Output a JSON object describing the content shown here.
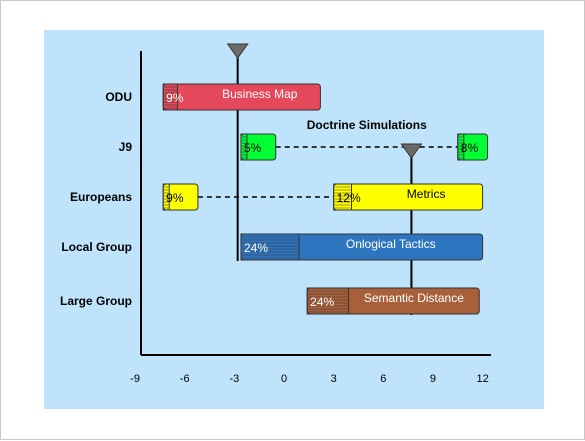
{
  "chart_data": {
    "type": "gantt",
    "background": "#bfe3fb",
    "xlim": [
      -9,
      12
    ],
    "x_ticks": [
      "-9",
      "-6",
      "-3",
      "0",
      "3",
      "6",
      "9",
      "12"
    ],
    "x_tick_values": [
      -9,
      -6,
      -3,
      0,
      3,
      6,
      9,
      12
    ],
    "categories": [
      "ODU",
      "J9",
      "Europeans",
      "Local Group",
      "Large Group"
    ],
    "tasks": [
      {
        "row": "ODU",
        "name": "Business Map",
        "start": -7.3,
        "end": 2.2,
        "percent": "9%",
        "progress": 0.09,
        "color": "#e5485a",
        "text_color": "#ffffff"
      },
      {
        "row": "J9",
        "name": "",
        "start": -2.6,
        "end": -0.5,
        "percent": "5%",
        "progress": 0.05,
        "color": "#00ff33",
        "text_color": "#000000"
      },
      {
        "row": "J9",
        "name": "",
        "start": 10.5,
        "end": 12.3,
        "percent": "8%",
        "progress": 0.08,
        "color": "#00ff33",
        "text_color": "#000000"
      },
      {
        "row": "Europeans",
        "name": "",
        "start": -7.3,
        "end": -5.2,
        "percent": "9%",
        "progress": 0.09,
        "color": "#ffff00",
        "text_color": "#000000"
      },
      {
        "row": "Europeans",
        "name": "Metrics",
        "start": 3.0,
        "end": 12.0,
        "percent": "12%",
        "progress": 0.12,
        "color": "#ffff00",
        "text_color": "#000000"
      },
      {
        "row": "Local Group",
        "name": "Onlogical Tactics",
        "start": -2.6,
        "end": 12.0,
        "percent": "24%",
        "progress": 0.24,
        "color": "#2e75c0",
        "text_color": "#ffffff"
      },
      {
        "row": "Large Group",
        "name": "Semantic Distance",
        "start": 1.4,
        "end": 11.8,
        "percent": "24%",
        "progress": 0.24,
        "color": "#a8603a",
        "text_color": "#ffffff"
      }
    ],
    "dependencies": [
      {
        "row": "J9",
        "from": -0.5,
        "to": 10.5,
        "label": "Doctrine Simulations"
      },
      {
        "row": "Europeans",
        "from": -5.2,
        "to": 3.0,
        "label": ""
      }
    ],
    "milestones": [
      {
        "value": -2.8,
        "from_row": "ODU",
        "to_row": "Local Group"
      },
      {
        "value": 7.7,
        "from_row": "Europeans",
        "to_row": "Large Group"
      }
    ]
  }
}
